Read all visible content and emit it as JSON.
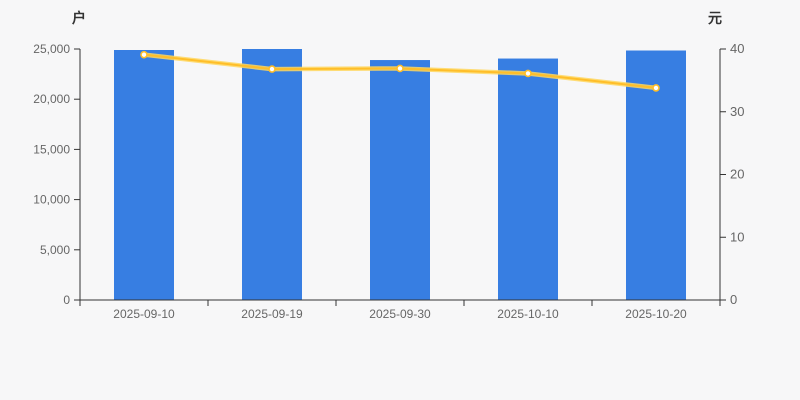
{
  "page": {
    "background_color": "#f7f7f8",
    "axis_line_color": "#333333",
    "tick_label_color": "#666666"
  },
  "chart_data": {
    "type": "bar",
    "subtype": "bar-line-combo",
    "categories": [
      "2025-09-10",
      "2025-09-19",
      "2025-09-30",
      "2025-10-10",
      "2025-10-20"
    ],
    "series": [
      {
        "name": "households",
        "render": "bar",
        "axis": "left",
        "color": "#377ee2",
        "values": [
          24900,
          25000,
          23900,
          24050,
          24850
        ]
      },
      {
        "name": "price",
        "render": "line",
        "axis": "right",
        "color": "#ffbe29",
        "line_halo_color": "#ffd75e",
        "marker_fill": "#ffffff",
        "values": [
          39.1,
          36.8,
          36.9,
          36.1,
          33.8
        ]
      }
    ],
    "left_axis": {
      "label": "户",
      "min": 0,
      "max": 25000,
      "tick_step": 5000,
      "tick_labels": [
        "0",
        "5,000",
        "10,000",
        "15,000",
        "20,000",
        "25,000"
      ]
    },
    "right_axis": {
      "label": "元",
      "min": 0,
      "max": 40,
      "tick_step": 10,
      "tick_labels": [
        "0",
        "10",
        "20",
        "30",
        "40"
      ]
    },
    "grid": false,
    "legend": "none"
  }
}
